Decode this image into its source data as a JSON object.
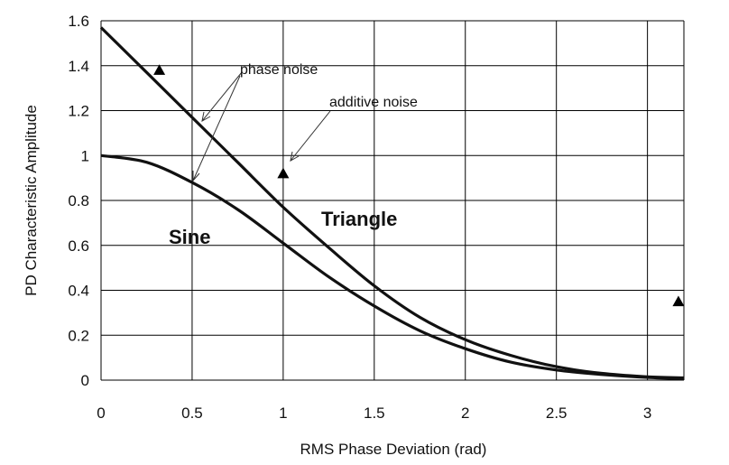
{
  "chart_data": {
    "type": "line",
    "title": "",
    "xlabel": "RMS Phase Deviation (rad)",
    "ylabel": "PD Characteristic Amplitude",
    "xlim": [
      0,
      3.2
    ],
    "ylim": [
      0,
      1.6
    ],
    "x_ticks": [
      0,
      0.5,
      1,
      1.5,
      2,
      2.5,
      3
    ],
    "x_tick_labels": [
      "0",
      "0.5",
      "1",
      "1.5",
      "2",
      "2.5",
      "3"
    ],
    "y_ticks": [
      0,
      0.2,
      0.4,
      0.6,
      0.8,
      1.0,
      1.2,
      1.4,
      1.6
    ],
    "y_tick_labels": [
      "0",
      "0.2",
      "0.4",
      "0.6",
      "0.8",
      "1",
      "1.2",
      "1.4",
      "1.6"
    ],
    "grid": true,
    "legend": "none",
    "series": [
      {
        "name": "Triangle",
        "x": [
          0,
          0.25,
          0.5,
          0.75,
          1.0,
          1.25,
          1.5,
          1.75,
          2.0,
          2.25,
          2.5,
          2.75,
          3.0,
          3.2
        ],
        "y": [
          1.57,
          1.37,
          1.17,
          0.97,
          0.77,
          0.59,
          0.42,
          0.28,
          0.18,
          0.11,
          0.06,
          0.03,
          0.015,
          0.01
        ]
      },
      {
        "name": "Sine",
        "x": [
          0,
          0.25,
          0.5,
          0.75,
          1.0,
          1.25,
          1.5,
          1.75,
          2.0,
          2.25,
          2.5,
          2.75,
          3.0,
          3.2
        ],
        "y": [
          1.0,
          0.97,
          0.88,
          0.76,
          0.61,
          0.46,
          0.33,
          0.22,
          0.14,
          0.08,
          0.045,
          0.025,
          0.012,
          0.007
        ]
      }
    ],
    "markers": [
      {
        "x": 0.32,
        "y": 1.38
      },
      {
        "x": 1.0,
        "y": 0.92
      },
      {
        "x": 3.17,
        "y": 0.35
      }
    ],
    "annotations": [
      {
        "text": "phase noise"
      },
      {
        "text": "additive noise"
      }
    ],
    "curve_labels": [
      "Sine",
      "Triangle"
    ]
  }
}
